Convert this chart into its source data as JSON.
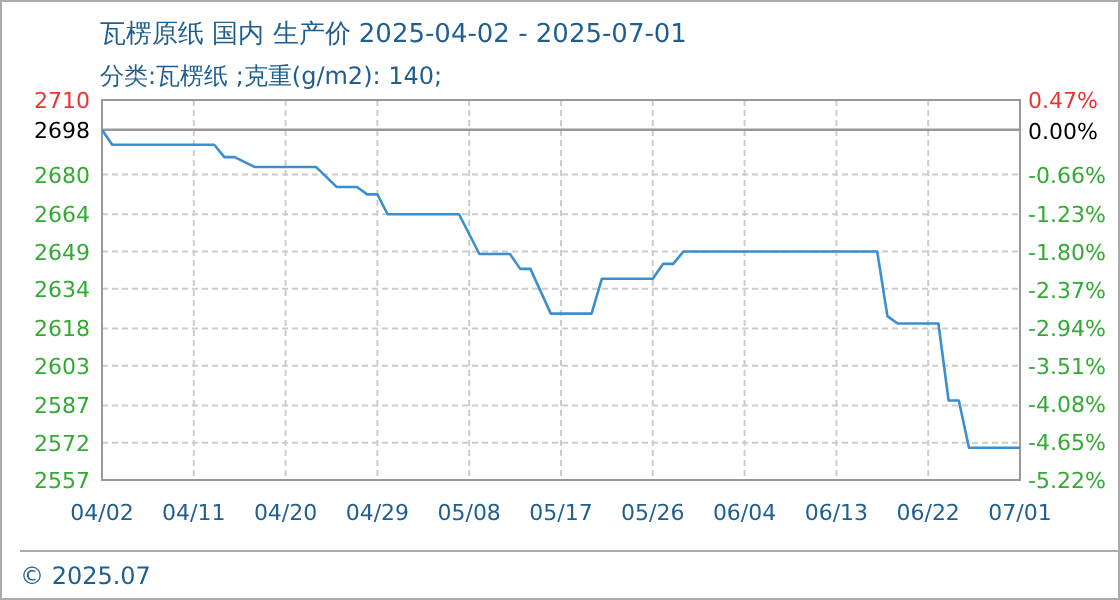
{
  "chart_data": {
    "type": "line",
    "title": "瓦楞原纸 国内 生产价 2025-04-02 - 2025-07-01",
    "subtitle": "分类:瓦楞纸 ;克重(g/m2): 140;",
    "x": [
      "2025-04-02",
      "2025-04-03",
      "2025-04-13",
      "2025-04-14",
      "2025-04-15",
      "2025-04-17",
      "2025-04-23",
      "2025-04-25",
      "2025-04-27",
      "2025-04-28",
      "2025-04-29",
      "2025-04-30",
      "2025-05-07",
      "2025-05-09",
      "2025-05-12",
      "2025-05-13",
      "2025-05-14",
      "2025-05-16",
      "2025-05-20",
      "2025-05-21",
      "2025-05-26",
      "2025-05-27",
      "2025-05-28",
      "2025-05-29",
      "2025-06-17",
      "2025-06-18",
      "2025-06-19",
      "2025-06-23",
      "2025-06-24",
      "2025-06-25",
      "2025-06-26",
      "2025-07-01"
    ],
    "series": [
      {
        "color": "#3a8fd0",
        "values": [
          2698,
          2692,
          2692,
          2687,
          2687,
          2683,
          2683,
          2675,
          2675,
          2672,
          2672,
          2664,
          2664,
          2648,
          2648,
          2642,
          2642,
          2624,
          2624,
          2638,
          2638,
          2644,
          2644,
          2649,
          2649,
          2623,
          2620,
          2620,
          2589,
          2589,
          2570,
          2570
        ]
      }
    ],
    "xlim": [
      "2025-04-02",
      "2025-07-01"
    ],
    "xticks": [
      {
        "value": "2025-04-02",
        "label": "04/02"
      },
      {
        "value": "2025-04-11",
        "label": "04/11"
      },
      {
        "value": "2025-04-20",
        "label": "04/20"
      },
      {
        "value": "2025-04-29",
        "label": "04/29"
      },
      {
        "value": "2025-05-08",
        "label": "05/08"
      },
      {
        "value": "2025-05-17",
        "label": "05/17"
      },
      {
        "value": "2025-05-26",
        "label": "05/26"
      },
      {
        "value": "2025-06-04",
        "label": "06/04"
      },
      {
        "value": "2025-06-13",
        "label": "06/13"
      },
      {
        "value": "2025-06-22",
        "label": "06/22"
      },
      {
        "value": "2025-07-01",
        "label": "07/01"
      }
    ],
    "ylim": [
      2557,
      2710
    ],
    "yticks": [
      2710,
      2698,
      2680,
      2664,
      2649,
      2634,
      2618,
      2603,
      2587,
      2572,
      2557
    ],
    "y2lim": [
      -5.22,
      0.47
    ],
    "y2ticks": [
      {
        "value": 0.47,
        "label": "0.47%"
      },
      {
        "value": 0,
        "label": "0.00%"
      },
      {
        "value": -0.66,
        "label": "-0.66%"
      },
      {
        "value": -1.23,
        "label": "-1.23%"
      },
      {
        "value": -1.8,
        "label": "-1.80%"
      },
      {
        "value": -2.37,
        "label": "-2.37%"
      },
      {
        "value": -2.94,
        "label": "-2.94%"
      },
      {
        "value": -3.51,
        "label": "-3.51%"
      },
      {
        "value": -4.08,
        "label": "-4.08%"
      },
      {
        "value": -4.65,
        "label": "-4.65%"
      },
      {
        "value": -5.22,
        "label": "-5.22%"
      }
    ],
    "ref_lines": [
      {
        "axis": "y",
        "value": 2698,
        "color": "#999999"
      }
    ],
    "grid": true,
    "marker": "none",
    "line_style": "solid",
    "annotations": [
      "© 2025.07"
    ]
  }
}
